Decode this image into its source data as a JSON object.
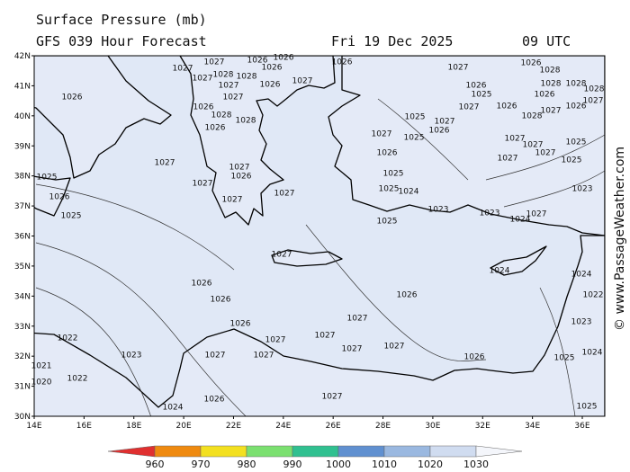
{
  "header": {
    "title": "Surface Pressure (mb)",
    "subtitle": "GFS 039 Hour Forecast",
    "date": "Fri 19 Dec 2025",
    "time": "09 UTC"
  },
  "map": {
    "lat_labels": [
      "42N",
      "41N",
      "40N",
      "39N",
      "38N",
      "37N",
      "36N",
      "35N",
      "34N",
      "33N",
      "32N",
      "31N",
      "30N"
    ],
    "lon_labels": [
      "14E",
      "16E",
      "18E",
      "20E",
      "22E",
      "24E",
      "26E",
      "28E",
      "30E",
      "32E",
      "34E",
      "36E"
    ],
    "isobar_labels": [
      1027,
      1027,
      1028,
      1026,
      1026,
      1026,
      1027,
      1026,
      1028,
      1027,
      1027,
      1027,
      1026,
      1026,
      1028,
      1028,
      1026,
      1027,
      1027,
      1026,
      1027,
      1027,
      1027,
      1027,
      1026,
      1025,
      1027,
      1026,
      1027,
      1025,
      1026,
      1025,
      1025,
      1024,
      1023,
      1025,
      1027,
      1024,
      1026,
      1026,
      1026,
      1026,
      1027,
      1027,
      1027,
      1027,
      1027,
      1027,
      1027,
      1022,
      1022,
      1023,
      1024,
      1026,
      1027,
      1026,
      1025,
      1025,
      1023,
      1024,
      1022,
      1024,
      1025,
      1026,
      1025,
      1023,
      1024,
      1027,
      1027,
      1027,
      1027,
      1027,
      1025,
      1025,
      1026,
      1025,
      1027,
      1026,
      1028,
      1027,
      1026,
      1028,
      1028,
      1026,
      1028,
      1027,
      1028,
      1026,
      1023,
      1021,
      1020
    ]
  },
  "colorbar": {
    "labels": [
      960,
      970,
      980,
      990,
      1000,
      1010,
      1020,
      1030
    ]
  },
  "credit": "© www.PassageWeather.com"
}
